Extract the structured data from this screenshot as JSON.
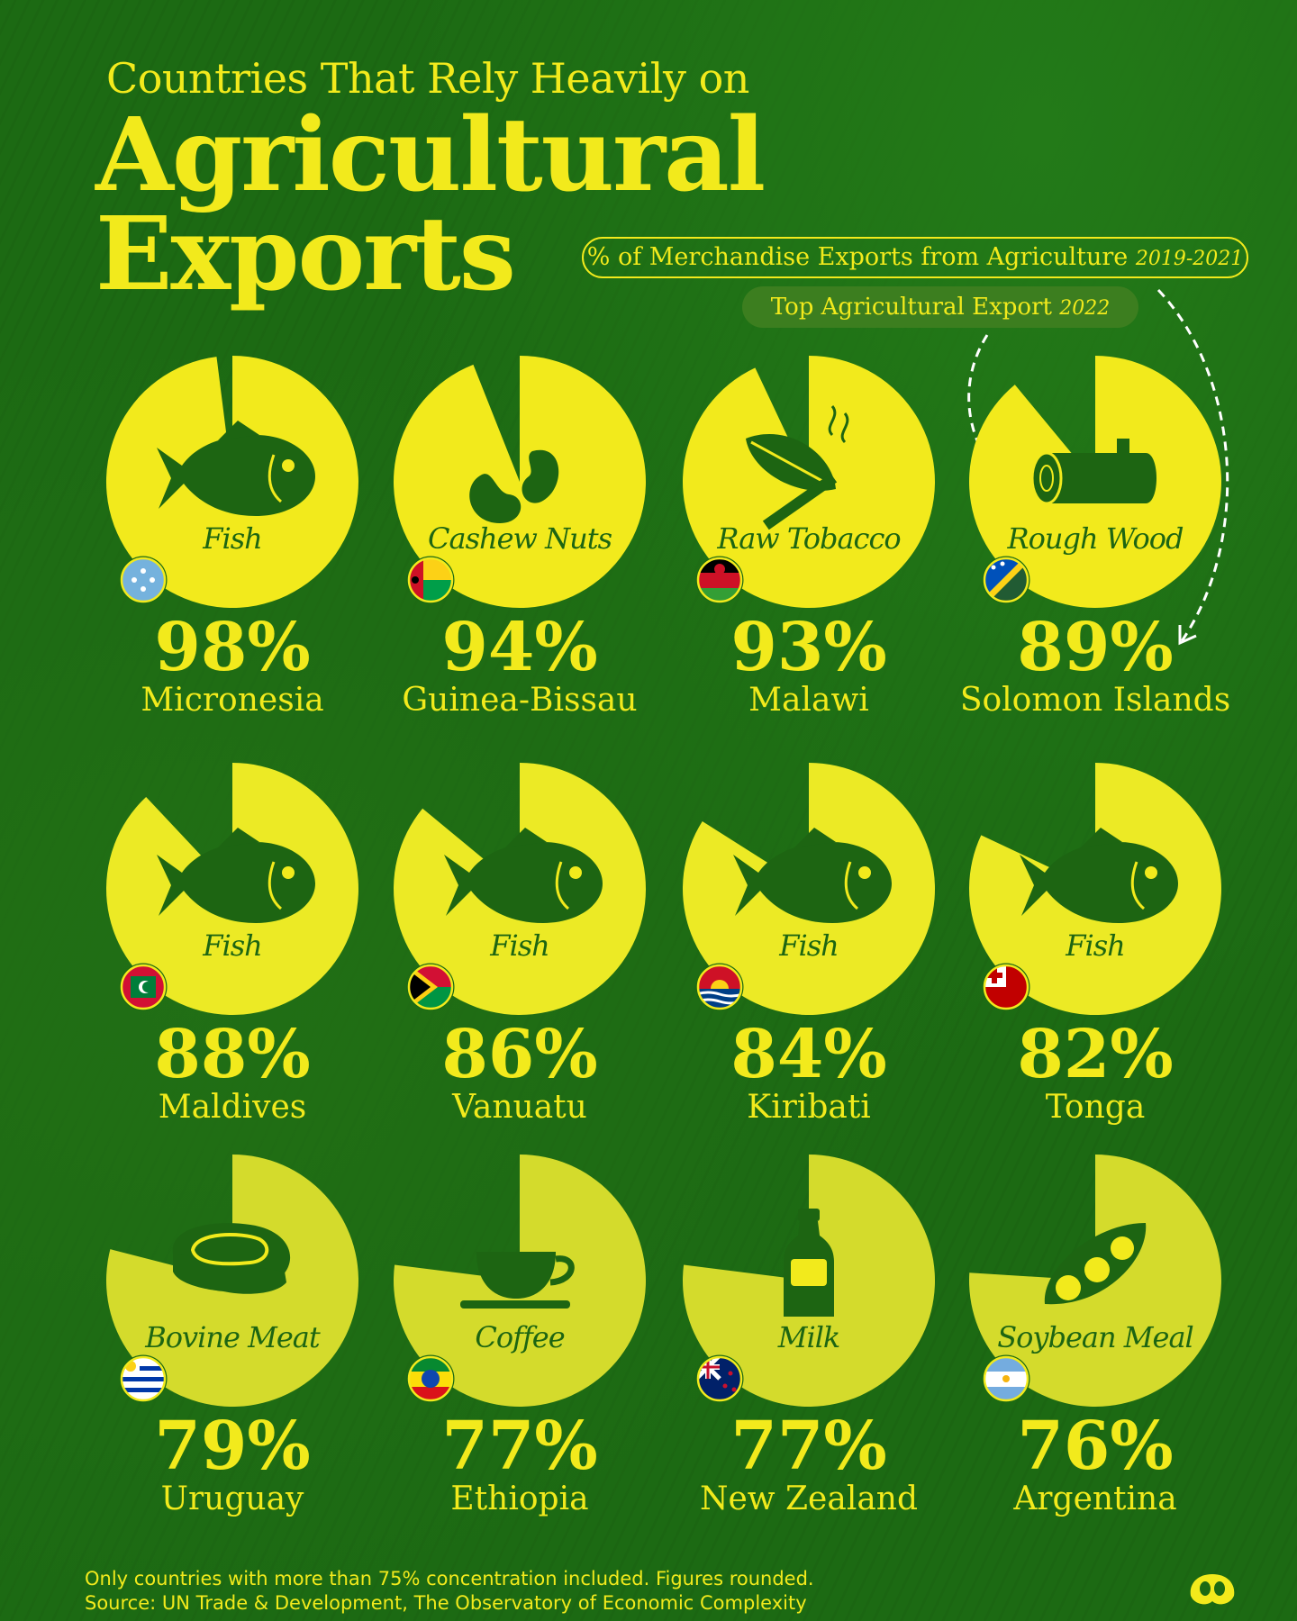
{
  "header": {
    "subtitle": "Countries That Rely Heavily on",
    "title_line1": "Agricultural",
    "title_line2": "Exports"
  },
  "legend": {
    "percent_label": "% of Merchandise Exports from Agriculture",
    "percent_years": "2019-2021",
    "export_label": "Top Agricultural Export",
    "export_years": "2022"
  },
  "colors": {
    "background": "#1c6a13",
    "accent": "#f2ea1c",
    "pie_row1": "#f2ea1c",
    "pie_row2": "#ecea25",
    "pie_row3": "#d4db2c",
    "icon": "#1d6512"
  },
  "chart_data": {
    "type": "pie",
    "unit": "%",
    "items": [
      {
        "country": "Micronesia",
        "value": 98,
        "label": "98%",
        "product": "Fish",
        "icon": "fish-icon",
        "flag": "micronesia-flag"
      },
      {
        "country": "Guinea-Bissau",
        "value": 94,
        "label": "94%",
        "product": "Cashew Nuts",
        "icon": "cashew-icon",
        "flag": "guinea-bissau-flag"
      },
      {
        "country": "Malawi",
        "value": 93,
        "label": "93%",
        "product": "Raw Tobacco",
        "icon": "tobacco-icon",
        "flag": "malawi-flag"
      },
      {
        "country": "Solomon Islands",
        "value": 89,
        "label": "89%",
        "product": "Rough Wood",
        "icon": "log-icon",
        "flag": "solomon-islands-flag"
      },
      {
        "country": "Maldives",
        "value": 88,
        "label": "88%",
        "product": "Fish",
        "icon": "fish-icon",
        "flag": "maldives-flag"
      },
      {
        "country": "Vanuatu",
        "value": 86,
        "label": "86%",
        "product": "Fish",
        "icon": "fish-icon",
        "flag": "vanuatu-flag"
      },
      {
        "country": "Kiribati",
        "value": 84,
        "label": "84%",
        "product": "Fish",
        "icon": "fish-icon",
        "flag": "kiribati-flag"
      },
      {
        "country": "Tonga",
        "value": 82,
        "label": "82%",
        "product": "Fish",
        "icon": "fish-icon",
        "flag": "tonga-flag"
      },
      {
        "country": "Uruguay",
        "value": 79,
        "label": "79%",
        "product": "Bovine Meat",
        "icon": "steak-icon",
        "flag": "uruguay-flag"
      },
      {
        "country": "Ethiopia",
        "value": 77,
        "label": "77%",
        "product": "Coffee",
        "icon": "coffee-cup-icon",
        "flag": "ethiopia-flag"
      },
      {
        "country": "New Zealand",
        "value": 77,
        "label": "77%",
        "product": "Milk",
        "icon": "milk-bottle-icon",
        "flag": "new-zealand-flag"
      },
      {
        "country": "Argentina",
        "value": 76,
        "label": "76%",
        "product": "Soybean Meal",
        "icon": "soybean-icon",
        "flag": "argentina-flag"
      }
    ]
  },
  "footer": {
    "note": "Only countries with more than 75% concentration included. Figures rounded.",
    "source": "Source:  UN Trade & Development, The Observatory of Economic Complexity"
  }
}
